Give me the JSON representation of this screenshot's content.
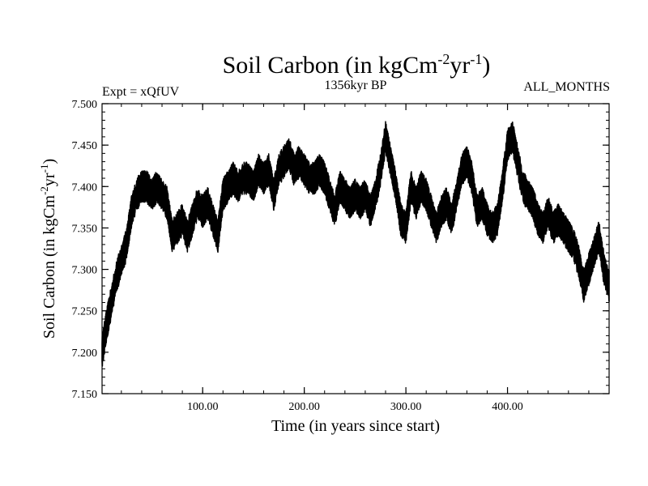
{
  "chart_data": {
    "type": "line",
    "title": {
      "main": "Soil Carbon (in kgCm",
      "sup1": "-2",
      "mid": "yr",
      "sup2": "-1",
      "end": ")"
    },
    "subtitle_left": "Expt = xQfUV",
    "subtitle_center": "1356kyr BP",
    "subtitle_right": "ALL_MONTHS",
    "xlabel": "Time (in years since start)",
    "ylabel": {
      "main": "Soil Carbon (in kgCm",
      "sup1": "-2",
      "mid": "yr",
      "sup2": "-1",
      "end": ")"
    },
    "xlim": [
      1,
      500
    ],
    "ylim": [
      7.15,
      7.5
    ],
    "x_ticks": [
      100,
      200,
      300,
      400
    ],
    "x_tick_labels": [
      "100.00",
      "200.00",
      "300.00",
      "400.00"
    ],
    "y_ticks": [
      7.15,
      7.2,
      7.25,
      7.3,
      7.35,
      7.4,
      7.45,
      7.5
    ],
    "y_tick_labels": [
      "7.150",
      "7.200",
      "7.250",
      "7.300",
      "7.350",
      "7.400",
      "7.450",
      "7.500"
    ],
    "series": [
      {
        "name": "Soil Carbon",
        "color": "#000000",
        "x": [
          1,
          5,
          10,
          15,
          20,
          25,
          30,
          35,
          40,
          45,
          50,
          55,
          60,
          65,
          70,
          75,
          80,
          85,
          90,
          95,
          100,
          105,
          110,
          115,
          120,
          125,
          130,
          135,
          140,
          145,
          150,
          155,
          160,
          165,
          170,
          175,
          180,
          185,
          190,
          195,
          200,
          205,
          210,
          215,
          220,
          225,
          230,
          235,
          240,
          245,
          250,
          255,
          260,
          265,
          270,
          275,
          280,
          285,
          290,
          295,
          300,
          305,
          310,
          315,
          320,
          325,
          330,
          335,
          340,
          345,
          350,
          355,
          360,
          365,
          370,
          375,
          380,
          385,
          390,
          395,
          400,
          405,
          410,
          415,
          420,
          425,
          430,
          435,
          440,
          445,
          450,
          455,
          460,
          465,
          470,
          475,
          480,
          485,
          490,
          495,
          500
        ],
        "y": [
          7.2,
          7.23,
          7.26,
          7.29,
          7.31,
          7.33,
          7.37,
          7.39,
          7.4,
          7.4,
          7.39,
          7.4,
          7.39,
          7.38,
          7.34,
          7.35,
          7.36,
          7.34,
          7.36,
          7.38,
          7.37,
          7.38,
          7.36,
          7.34,
          7.39,
          7.4,
          7.41,
          7.4,
          7.41,
          7.41,
          7.4,
          7.42,
          7.41,
          7.42,
          7.39,
          7.42,
          7.43,
          7.44,
          7.42,
          7.43,
          7.42,
          7.41,
          7.41,
          7.42,
          7.41,
          7.39,
          7.37,
          7.4,
          7.39,
          7.38,
          7.39,
          7.38,
          7.39,
          7.37,
          7.39,
          7.42,
          7.46,
          7.43,
          7.4,
          7.36,
          7.35,
          7.4,
          7.38,
          7.4,
          7.39,
          7.37,
          7.35,
          7.37,
          7.38,
          7.36,
          7.39,
          7.42,
          7.43,
          7.41,
          7.37,
          7.38,
          7.36,
          7.35,
          7.36,
          7.4,
          7.45,
          7.46,
          7.43,
          7.4,
          7.39,
          7.38,
          7.36,
          7.35,
          7.37,
          7.35,
          7.36,
          7.35,
          7.34,
          7.33,
          7.31,
          7.28,
          7.3,
          7.32,
          7.34,
          7.3,
          7.28
        ],
        "band": 0.018
      }
    ]
  }
}
